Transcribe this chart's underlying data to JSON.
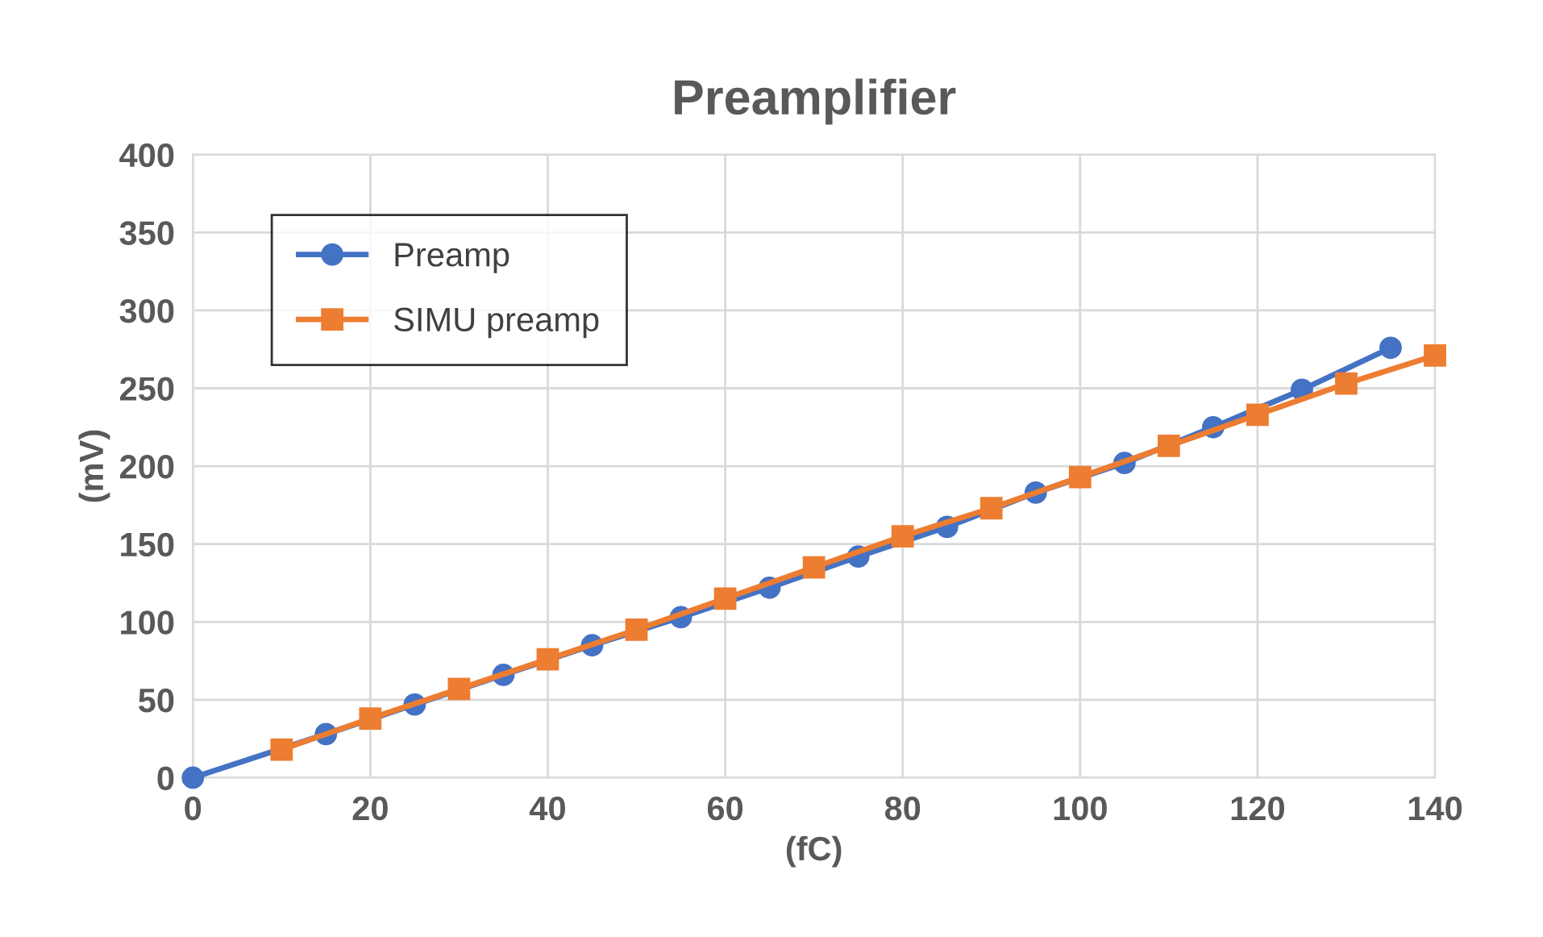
{
  "chart_data": {
    "type": "line",
    "title": "Preamplifier",
    "xlabel": "(fC)",
    "ylabel": "(mV)",
    "series": [
      {
        "name": "Preamp",
        "color": "#4472c4",
        "marker": "circle",
        "x": [
          0,
          15,
          25,
          35,
          45,
          55,
          65,
          75,
          85,
          95,
          105,
          115,
          125,
          135
        ],
        "values": [
          0,
          28,
          47,
          66,
          85,
          103,
          122,
          142,
          161,
          183,
          202,
          225,
          249,
          276
        ]
      },
      {
        "name": "SIMU preamp",
        "color": "#ed7d31",
        "marker": "square",
        "x": [
          10,
          20,
          30,
          40,
          50,
          60,
          70,
          80,
          90,
          100,
          110,
          120,
          130,
          140
        ],
        "values": [
          18,
          38,
          57,
          76,
          95,
          115,
          135,
          155,
          173,
          193,
          213,
          233,
          253,
          271
        ]
      }
    ],
    "xlim": [
      0,
      140
    ],
    "xticks": [
      0,
      20,
      40,
      60,
      80,
      100,
      120,
      140
    ],
    "ylim": [
      0,
      400
    ],
    "yticks": [
      0,
      50,
      100,
      150,
      200,
      250,
      300,
      350,
      400
    ],
    "grid": true,
    "legend": "top left",
    "line_style": "solid"
  }
}
